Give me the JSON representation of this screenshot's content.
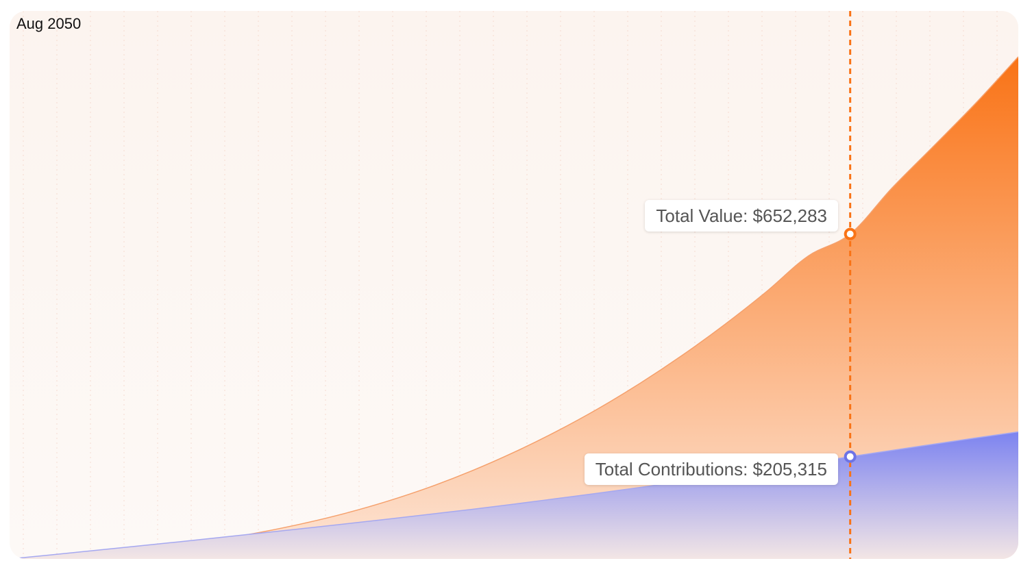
{
  "hover": {
    "date": "Aug 2050",
    "total_value_label": "Total Value: $652,283",
    "total_contributions_label": "Total Contributions: $205,315"
  },
  "chart_data": {
    "type": "area",
    "grid": "vertical dotted",
    "legend": "none",
    "hover_index": 20,
    "series": [
      {
        "name": "Total Value",
        "color": "#f97316",
        "values": [
          0,
          3700,
          9500,
          17400,
          27300,
          39500,
          54000,
          71400,
          91900,
          116100,
          144300,
          176900,
          214000,
          255500,
          301500,
          352500,
          408500,
          469600,
          536000,
          608000,
          652283,
          745000,
          830000,
          916000,
          1008000
        ]
      },
      {
        "name": "Total Contributions",
        "color": "#7c83f0",
        "values": [
          0,
          8300,
          16800,
          25400,
          34100,
          43000,
          52000,
          61200,
          70500,
          80000,
          89700,
          99500,
          110000,
          121000,
          132000,
          143500,
          155500,
          167500,
          180000,
          192500,
          205315,
          218000,
          230500,
          243000,
          255000
        ]
      }
    ],
    "y_max": 1100000
  },
  "colors": {
    "value_line": "#f5a06c",
    "value_fill_top": "#f97316",
    "value_fill_bottom": "#fde5d6",
    "contrib_line": "#a5a8f0",
    "contrib_fill_top": "#7c83f0",
    "contrib_fill_bottom": "#f3e6e5",
    "cursor": "#f97316",
    "contrib_marker": "#6d73e6",
    "grid": "#f1c5b5"
  }
}
